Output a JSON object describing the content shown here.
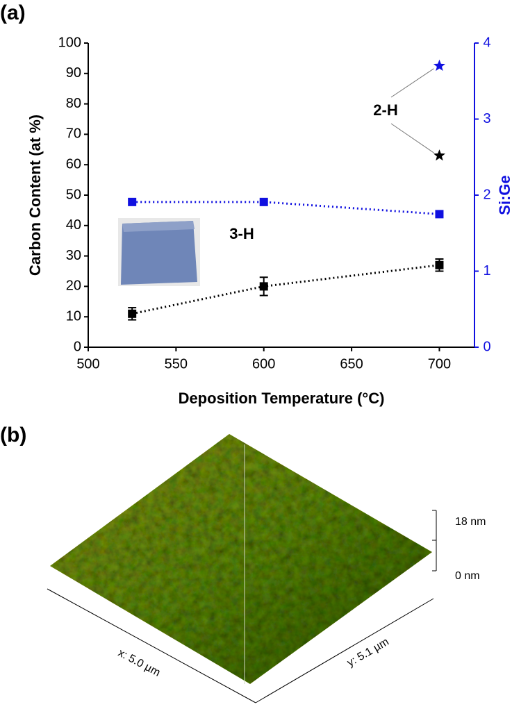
{
  "panel_labels": [
    "(a)",
    "(b)"
  ],
  "chart_data": {
    "type": "scatter-line",
    "x_label": "Deposition Temperature (°C)",
    "y_label": "Carbon Content (at %)",
    "y2_label": "Si:Ge",
    "x": [
      525,
      600,
      700
    ],
    "series": [
      {
        "color": "#000000",
        "marker": "square",
        "values": [
          11,
          20,
          27
        ],
        "errors": [
          2,
          3,
          2
        ]
      },
      {
        "color": "#1010e0",
        "marker": "square",
        "axis": "y2",
        "values": [
          1.91,
          1.91,
          1.75
        ]
      },
      {
        "color": "#000000",
        "marker": "star",
        "x": [
          700
        ],
        "values": [
          63
        ]
      },
      {
        "color": "#1010e0",
        "marker": "star",
        "axis": "y2",
        "x": [
          700
        ],
        "values": [
          3.7
        ]
      }
    ],
    "annotations": [
      "2-H",
      "3-H"
    ],
    "xlim": [
      500,
      720
    ],
    "xticks": [
      500,
      550,
      600,
      650,
      700
    ],
    "ylim": [
      0,
      100
    ],
    "yticks": [
      0,
      10,
      20,
      30,
      40,
      50,
      60,
      70,
      80,
      90,
      100
    ],
    "y2lim": [
      0,
      4
    ],
    "y2ticks": [
      0,
      1,
      2,
      3,
      4
    ]
  },
  "afm_image": {
    "z_max": "18 nm",
    "z_min": "0 nm",
    "x_size": "x: 5.0 µm",
    "y_size": "y: 5.1 µm"
  }
}
